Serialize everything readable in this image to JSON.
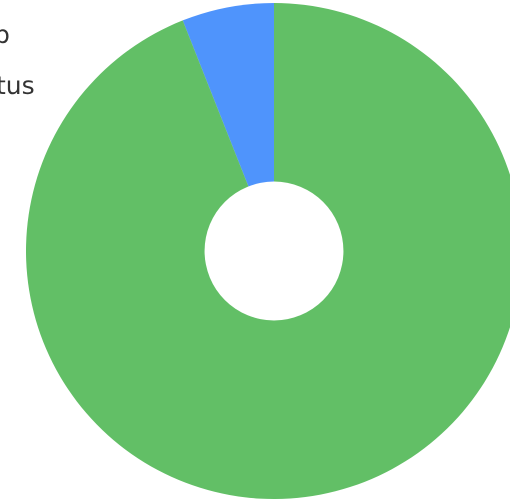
{
  "chart_data": {
    "type": "pie",
    "variant": "donut",
    "title": "",
    "legend": {
      "placement": "top-left",
      "visible_fragments": [
        "p",
        "tus"
      ]
    },
    "series": [
      {
        "values": [
          6,
          94
        ],
        "colors": [
          "#4f94fc",
          "#62bf66"
        ]
      }
    ],
    "hole_fraction": 0.28
  }
}
